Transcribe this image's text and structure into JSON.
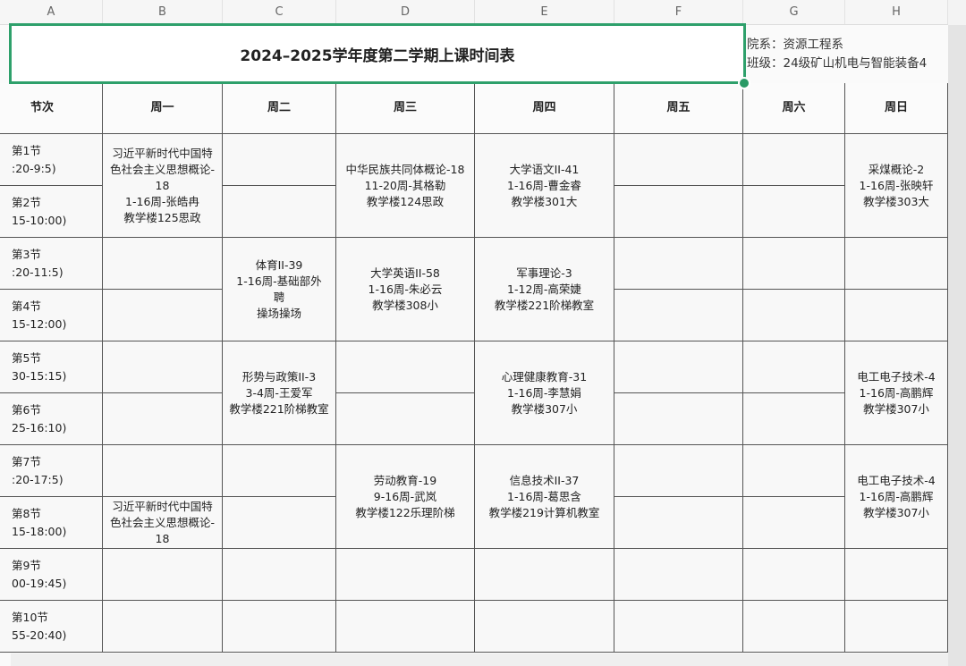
{
  "column_letters": [
    "A",
    "B",
    "C",
    "D",
    "E",
    "F",
    "G",
    "H"
  ],
  "title": "2024–2025学年度第二学期上课时间表",
  "info": {
    "department": "院系：资源工程系",
    "class": "班级：24级矿山机电与智能装备4"
  },
  "header": [
    "节次",
    "周一",
    "周二",
    "周三",
    "周四",
    "周五",
    "周六",
    "周日"
  ],
  "periods": [
    {
      "label": "第1节",
      "time": ":20-9:5)"
    },
    {
      "label": "第2节",
      "time": "15-10:00)"
    },
    {
      "label": "第3节",
      "time": ":20-11:5)"
    },
    {
      "label": "第4节",
      "time": "15-12:00)"
    },
    {
      "label": "第5节",
      "time": "30-15:15)"
    },
    {
      "label": "第6节",
      "time": "25-16:10)"
    },
    {
      "label": "第7节",
      "time": ":20-17:5)"
    },
    {
      "label": "第8节",
      "time": "15-18:00)"
    },
    {
      "label": "第9节",
      "time": "00-19:45)"
    },
    {
      "label": "第10节",
      "time": "55-20:40)"
    }
  ],
  "courses": [
    {
      "day": 1,
      "start": 1,
      "span": 2,
      "lines": [
        "习近平新时代中国特",
        "色社会主义思想概论-",
        "18",
        "1-16周-张皓冉",
        "教学楼125思政"
      ]
    },
    {
      "day": 1,
      "start": 8,
      "span": 1,
      "clipped": true,
      "lines": [
        "习近平新时代中国特",
        "色社会主义思想概论-",
        "18"
      ]
    },
    {
      "day": 2,
      "start": 3,
      "span": 2,
      "lines": [
        "体育II-39",
        "1-16周-基础部外",
        "聘",
        "操场操场"
      ]
    },
    {
      "day": 2,
      "start": 5,
      "span": 2,
      "lines": [
        "形势与政策II-3",
        "3-4周-王爱军",
        "教学楼221阶梯教室"
      ]
    },
    {
      "day": 3,
      "start": 1,
      "span": 2,
      "lines": [
        "中华民族共同体概论-18",
        "11-20周-其格勒",
        "教学楼124思政"
      ]
    },
    {
      "day": 3,
      "start": 3,
      "span": 2,
      "lines": [
        "大学英语II-58",
        "1-16周-朱必云",
        "教学楼308小"
      ]
    },
    {
      "day": 3,
      "start": 7,
      "span": 2,
      "lines": [
        "劳动教育-19",
        "9-16周-武岚",
        "教学楼122乐理阶梯"
      ]
    },
    {
      "day": 4,
      "start": 1,
      "span": 2,
      "lines": [
        "大学语文II-41",
        "1-16周-曹金睿",
        "教学楼301大"
      ]
    },
    {
      "day": 4,
      "start": 3,
      "span": 2,
      "lines": [
        "军事理论-3",
        "1-12周-高荣婕",
        "教学楼221阶梯教室"
      ]
    },
    {
      "day": 4,
      "start": 5,
      "span": 2,
      "lines": [
        "心理健康教育-31",
        "1-16周-李慧娟",
        "教学楼307小"
      ]
    },
    {
      "day": 4,
      "start": 7,
      "span": 2,
      "lines": [
        "信息技术II-37",
        "1-16周-葛思含",
        "教学楼219计算机教室"
      ]
    },
    {
      "day": 7,
      "start": 1,
      "span": 2,
      "lines": [
        "采煤概论-2",
        "1-16周-张映轩",
        "教学楼303大"
      ]
    },
    {
      "day": 7,
      "start": 5,
      "span": 2,
      "lines": [
        "电工电子技术-4",
        "1-16周-高鹏辉",
        "教学楼307小"
      ]
    },
    {
      "day": 7,
      "start": 7,
      "span": 2,
      "lines": [
        "电工电子技术-4",
        "1-16周-高鹏辉",
        "教学楼307小"
      ]
    }
  ],
  "colors": {
    "selection": "#2ea06b",
    "grid": "#555555"
  }
}
